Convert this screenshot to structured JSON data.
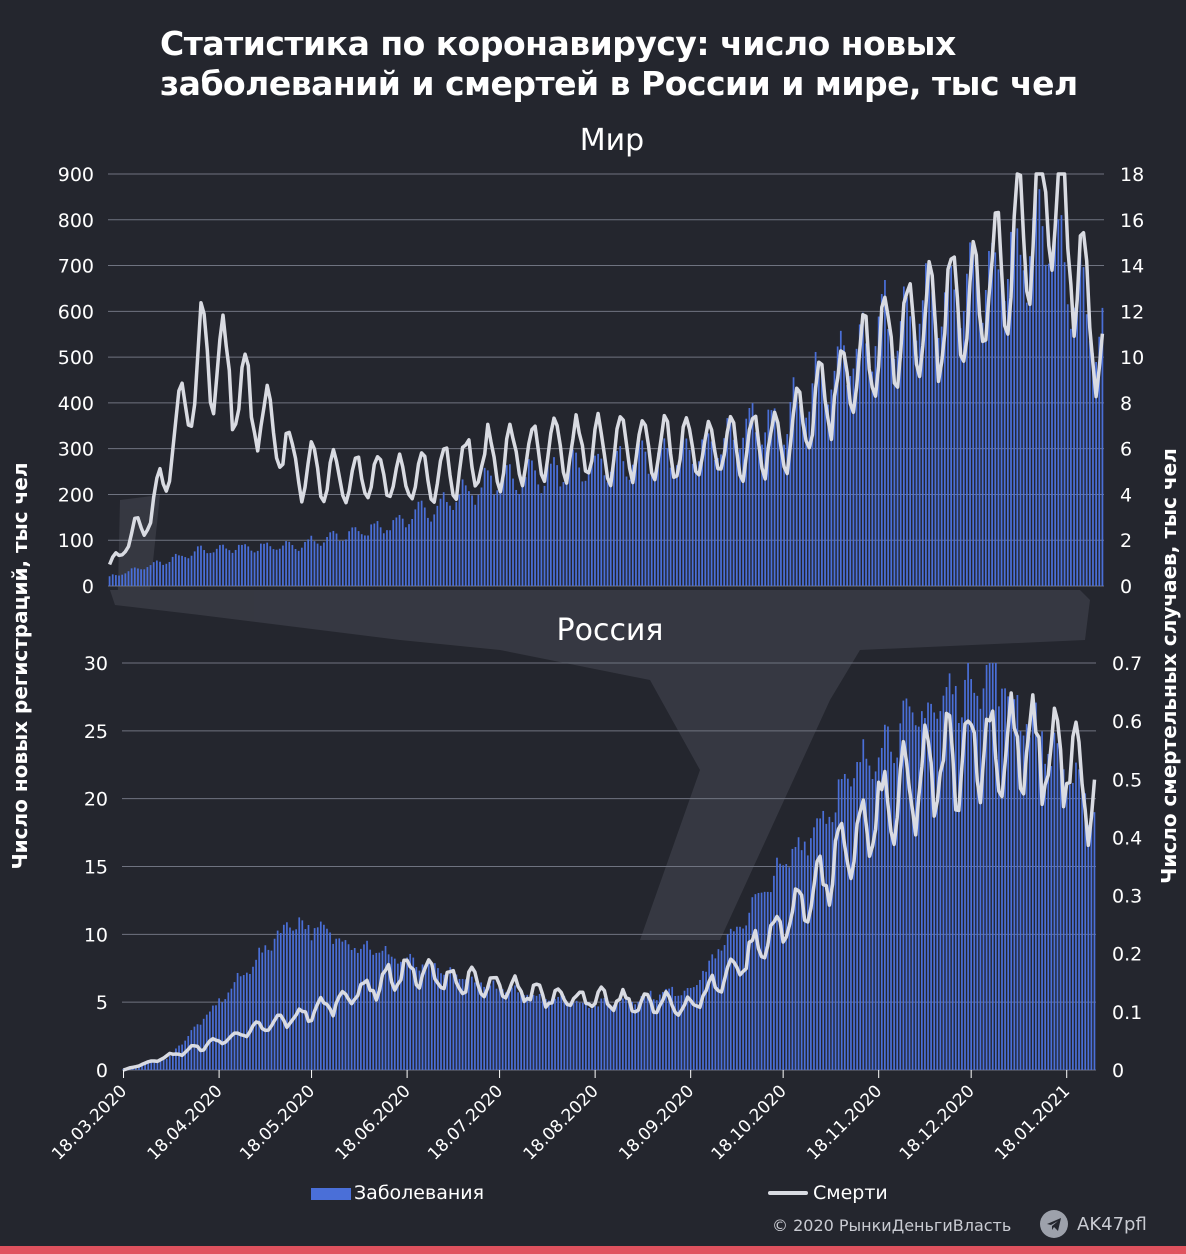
{
  "title_line1": "Статистика по коронавирусу: число новых",
  "title_line2": "заболеваний и смертей в России и мире, тыс чел",
  "left_axis_label": "Число новых регистраций, тыс чел",
  "right_axis_label": "Число смертельных случаев, тыс чел",
  "legend": {
    "cases": "Заболевания",
    "deaths": "Смерти"
  },
  "copyright": "© 2020  РынкиДеньгиВласть",
  "handle": "AK47pfl",
  "colors": {
    "background": "#24262e",
    "bars": "#4a6fd8",
    "line": "#d9dbe2",
    "bottom_bar": "#e0525e",
    "grid": "#6f7380"
  },
  "chart_data": [
    {
      "type": "bar",
      "title": "Мир",
      "x_ticks": [],
      "left_ylim": [
        0,
        900
      ],
      "left_ticks": [
        0,
        100,
        200,
        300,
        400,
        500,
        600,
        700,
        800,
        900
      ],
      "right_ylim": [
        0,
        18
      ],
      "right_ticks": [
        0,
        2,
        4,
        6,
        8,
        10,
        12,
        14,
        16,
        18
      ],
      "grid": true,
      "series": [
        {
          "name": "Заболевания",
          "kind": "bar",
          "axis": "left",
          "monthly_keypoints": [
            {
              "x": "18.03.2020",
              "y": 20
            },
            {
              "x": "18.04.2020",
              "y": 80
            },
            {
              "x": "18.05.2020",
              "y": 90
            },
            {
              "x": "18.06.2020",
              "y": 140
            },
            {
              "x": "18.07.2020",
              "y": 230
            },
            {
              "x": "18.08.2020",
              "y": 260
            },
            {
              "x": "18.09.2020",
              "y": 290
            },
            {
              "x": "18.10.2020",
              "y": 370
            },
            {
              "x": "18.11.2020",
              "y": 570
            },
            {
              "x": "18.12.2020",
              "y": 650
            },
            {
              "x": "10.01.2021",
              "y": 780
            },
            {
              "x": "18.01.2021",
              "y": 650
            },
            {
              "x": "27.01.2021",
              "y": 520
            }
          ]
        },
        {
          "name": "Смерти",
          "kind": "line",
          "axis": "right",
          "monthly_keypoints": [
            {
              "x": "18.03.2020",
              "y": 0.9
            },
            {
              "x": "01.04.2020",
              "y": 3.4
            },
            {
              "x": "17.04.2020",
              "y": 10.5
            },
            {
              "x": "18.05.2020",
              "y": 5.0
            },
            {
              "x": "18.06.2020",
              "y": 4.6
            },
            {
              "x": "18.07.2020",
              "y": 5.6
            },
            {
              "x": "18.08.2020",
              "y": 6.0
            },
            {
              "x": "18.09.2020",
              "y": 6.0
            },
            {
              "x": "18.10.2020",
              "y": 6.4
            },
            {
              "x": "18.11.2020",
              "y": 10.5
            },
            {
              "x": "18.12.2020",
              "y": 12.5
            },
            {
              "x": "13.01.2021",
              "y": 17.5
            },
            {
              "x": "27.01.2021",
              "y": 9.7
            }
          ]
        }
      ]
    },
    {
      "type": "bar",
      "title": "Россия",
      "x_ticks": [
        "18.03.2020",
        "18.04.2020",
        "18.05.2020",
        "18.06.2020",
        "18.07.2020",
        "18.08.2020",
        "18.09.2020",
        "18.10.2020",
        "18.11.2020",
        "18.12.2020",
        "18.01.2021"
      ],
      "left_ylim": [
        0,
        30
      ],
      "left_ticks": [
        0,
        5,
        10,
        15,
        20,
        25,
        30
      ],
      "right_ylim": [
        0,
        0.7
      ],
      "right_ticks": [
        0,
        0.1,
        0.2,
        0.3,
        0.4,
        0.5,
        0.6,
        0.7
      ],
      "grid": true,
      "series": [
        {
          "name": "Заболевания",
          "kind": "bar",
          "axis": "left",
          "monthly_keypoints": [
            {
              "x": "18.03.2020",
              "y": 0.1
            },
            {
              "x": "01.04.2020",
              "y": 0.8
            },
            {
              "x": "18.04.2020",
              "y": 5.0
            },
            {
              "x": "11.05.2020",
              "y": 11.0
            },
            {
              "x": "18.06.2020",
              "y": 8.0
            },
            {
              "x": "18.07.2020",
              "y": 6.0
            },
            {
              "x": "18.08.2020",
              "y": 4.8
            },
            {
              "x": "18.09.2020",
              "y": 6.0
            },
            {
              "x": "18.10.2020",
              "y": 15.0
            },
            {
              "x": "18.11.2020",
              "y": 24.0
            },
            {
              "x": "24.12.2020",
              "y": 29.5
            },
            {
              "x": "18.01.2021",
              "y": 22.0
            },
            {
              "x": "27.01.2021",
              "y": 19.0
            }
          ]
        },
        {
          "name": "Смерти",
          "kind": "line",
          "axis": "right",
          "monthly_keypoints": [
            {
              "x": "18.03.2020",
              "y": 0.0
            },
            {
              "x": "18.04.2020",
              "y": 0.05
            },
            {
              "x": "18.05.2020",
              "y": 0.1
            },
            {
              "x": "18.06.2020",
              "y": 0.17
            },
            {
              "x": "18.07.2020",
              "y": 0.14
            },
            {
              "x": "18.08.2020",
              "y": 0.12
            },
            {
              "x": "18.09.2020",
              "y": 0.11
            },
            {
              "x": "18.10.2020",
              "y": 0.25
            },
            {
              "x": "18.11.2020",
              "y": 0.44
            },
            {
              "x": "18.12.2020",
              "y": 0.56
            },
            {
              "x": "18.01.2021",
              "y": 0.54
            },
            {
              "x": "27.01.2021",
              "y": 0.45
            }
          ]
        }
      ]
    }
  ]
}
